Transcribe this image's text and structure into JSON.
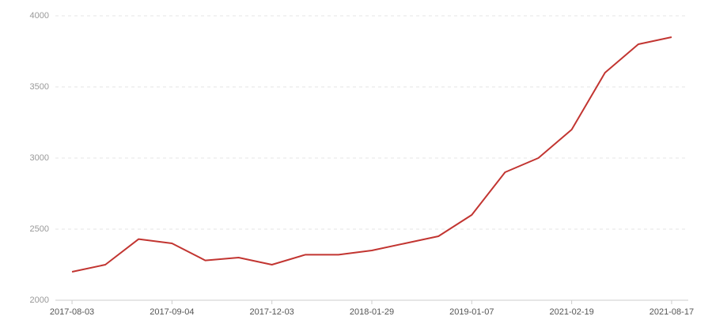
{
  "chart_data": {
    "type": "line",
    "categories": [
      "2017-08-03",
      null,
      null,
      "2017-09-04",
      null,
      null,
      "2017-12-03",
      null,
      null,
      "2018-01-29",
      null,
      null,
      "2019-01-07",
      null,
      null,
      "2021-02-19",
      null,
      null,
      "2021-08-17"
    ],
    "series": [
      {
        "color": "#c23531",
        "values": [
          2200,
          2250,
          2430,
          2400,
          2280,
          2300,
          2250,
          2320,
          2320,
          2350,
          2400,
          2450,
          2600,
          2900,
          3000,
          3200,
          3600,
          3800,
          3850
        ]
      }
    ],
    "ylim": [
      2000,
      4000
    ],
    "yticks": [
      2000,
      2500,
      3000,
      3500,
      4000
    ],
    "grid": true
  }
}
